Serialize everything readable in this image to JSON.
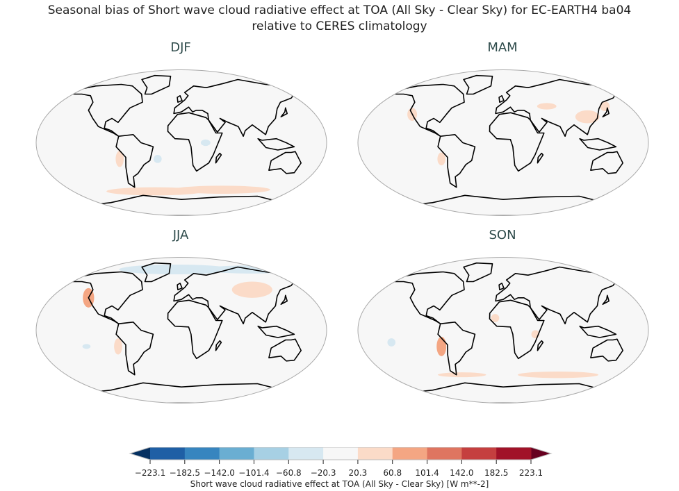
{
  "title": {
    "line1": "Seasonal bias of Short wave cloud radiative effect at TOA (All Sky - Clear Sky) for EC-EARTH4 ba04",
    "line2": "relative to CERES climatology"
  },
  "panels": [
    {
      "label": "DJF"
    },
    {
      "label": "MAM"
    },
    {
      "label": "JJA"
    },
    {
      "label": "SON"
    }
  ],
  "colorbar": {
    "label": "Short wave cloud radiative effect at TOA (All Sky - Clear Sky) [W m**-2]",
    "ticks": [
      "−223.1",
      "−182.5",
      "−142.0",
      "−101.4",
      "−60.8",
      "−20.3",
      "20.3",
      "60.8",
      "101.4",
      "142.0",
      "182.5",
      "223.1"
    ],
    "colors": [
      "#1f5fa5",
      "#3785bf",
      "#6aaed2",
      "#a7d0e4",
      "#d7e8f1",
      "#f7f7f7",
      "#fbdbc8",
      "#f4a683",
      "#df7560",
      "#c53f3f",
      "#a11228"
    ],
    "under_color": "#053061",
    "over_color": "#67001f",
    "extend": "both",
    "colormap": "RdBu_r"
  }
}
